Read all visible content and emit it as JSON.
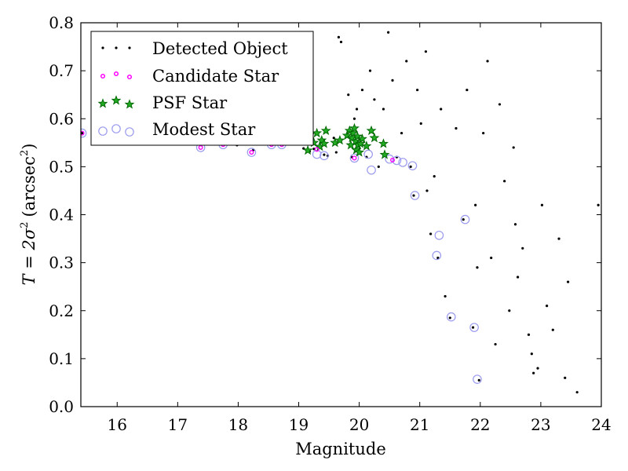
{
  "chart_data": {
    "type": "scatter",
    "title": "",
    "xlabel": "Magnitude",
    "ylabel_main": "T = 2σ",
    "ylabel_exp": "2",
    "ylabel_unit": "(arcsec",
    "ylabel_unit_exp": "2",
    "ylabel_unit_close": ")",
    "xlim": [
      15.4,
      24.0
    ],
    "ylim": [
      0.0,
      0.8
    ],
    "x_ticks": [
      16,
      17,
      18,
      19,
      20,
      21,
      22,
      23,
      24
    ],
    "y_ticks": [
      0.0,
      0.1,
      0.2,
      0.3,
      0.4,
      0.5,
      0.6,
      0.7,
      0.8
    ],
    "y_tick_labels": [
      "0.0",
      "0.1",
      "0.2",
      "0.3",
      "0.4",
      "0.5",
      "0.6",
      "0.7",
      "0.8"
    ],
    "grid": false,
    "legend_position": "top-left",
    "colors": {
      "detected": "#000000",
      "candidate": "#ff00ff",
      "psf_fill": "#22aa22",
      "psf_edge": "#006400",
      "modest": "#9a9aee"
    },
    "series": [
      {
        "name": "Detected Object",
        "marker": "dot",
        "x": [
          15.42,
          16.05,
          16.48,
          16.72,
          17.3,
          17.65,
          17.98,
          18.25,
          18.55,
          18.72,
          19.08,
          19.18,
          19.25,
          19.32,
          19.42,
          19.48,
          19.58,
          19.62,
          19.66,
          19.7,
          19.82,
          19.88,
          19.92,
          19.96,
          19.99,
          20.05,
          20.12,
          20.18,
          20.25,
          20.32,
          20.4,
          20.48,
          20.55,
          20.62,
          20.7,
          20.78,
          20.85,
          20.9,
          20.96,
          21.02,
          21.1,
          21.18,
          21.24,
          21.3,
          21.35,
          21.5,
          21.6,
          21.72,
          21.78,
          21.88,
          21.92,
          21.98,
          22.05,
          22.12,
          22.18,
          22.25,
          22.32,
          22.4,
          22.48,
          22.55,
          22.62,
          22.7,
          22.8,
          22.88,
          22.95,
          23.02,
          23.1,
          23.2,
          23.3,
          23.4,
          23.6,
          23.95,
          21.12,
          21.42,
          21.95,
          22.58,
          22.85,
          23.45
        ],
        "y": [
          0.57,
          0.56,
          0.558,
          0.556,
          0.548,
          0.549,
          0.545,
          0.535,
          0.547,
          0.553,
          0.538,
          0.532,
          0.537,
          0.541,
          0.525,
          0.523,
          0.56,
          0.53,
          0.77,
          0.76,
          0.65,
          0.52,
          0.6,
          0.62,
          0.55,
          0.66,
          0.52,
          0.7,
          0.64,
          0.5,
          0.62,
          0.78,
          0.68,
          0.52,
          0.57,
          0.72,
          0.5,
          0.44,
          0.66,
          0.59,
          0.74,
          0.36,
          0.48,
          0.31,
          0.62,
          0.185,
          0.58,
          0.39,
          0.66,
          0.165,
          0.42,
          0.055,
          0.57,
          0.72,
          0.31,
          0.13,
          0.63,
          0.47,
          0.2,
          0.54,
          0.27,
          0.33,
          0.15,
          0.07,
          0.08,
          0.42,
          0.21,
          0.16,
          0.35,
          0.06,
          0.03,
          0.42,
          0.45,
          0.23,
          0.29,
          0.38,
          0.11,
          0.26
        ]
      },
      {
        "name": "Candidate Star",
        "marker": "small-circle",
        "x": [
          15.42,
          16.05,
          16.48,
          17.38,
          17.75,
          18.22,
          18.55,
          18.72,
          19.3,
          19.92,
          20.55
        ],
        "y": [
          0.57,
          0.561,
          0.557,
          0.54,
          0.546,
          0.53,
          0.546,
          0.546,
          0.536,
          0.518,
          0.514
        ]
      },
      {
        "name": "PSF Star",
        "marker": "star",
        "x": [
          19.15,
          19.2,
          19.25,
          19.3,
          19.35,
          19.38,
          19.42,
          19.45,
          19.6,
          19.68,
          19.8,
          19.84,
          19.86,
          19.88,
          19.9,
          19.92,
          19.94,
          19.95,
          19.97,
          19.98,
          20.0,
          20.02,
          20.05,
          20.12,
          20.2,
          20.25,
          20.4,
          20.42
        ],
        "y": [
          0.534,
          0.568,
          0.55,
          0.57,
          0.542,
          0.555,
          0.548,
          0.575,
          0.55,
          0.555,
          0.565,
          0.575,
          0.545,
          0.56,
          0.57,
          0.58,
          0.553,
          0.535,
          0.563,
          0.545,
          0.53,
          0.548,
          0.558,
          0.543,
          0.575,
          0.56,
          0.548,
          0.525
        ]
      },
      {
        "name": "Modest Star",
        "marker": "open-circle",
        "x": [
          15.42,
          16.05,
          16.48,
          17.38,
          17.75,
          18.22,
          18.55,
          18.72,
          19.3,
          19.42,
          19.92,
          20.15,
          20.2,
          20.5,
          20.62,
          20.72,
          20.88,
          20.92,
          21.28,
          21.32,
          21.52,
          21.75,
          21.9,
          21.95
        ],
        "y": [
          0.57,
          0.561,
          0.557,
          0.54,
          0.546,
          0.53,
          0.546,
          0.546,
          0.526,
          0.523,
          0.518,
          0.526,
          0.493,
          0.516,
          0.513,
          0.509,
          0.502,
          0.44,
          0.315,
          0.357,
          0.187,
          0.39,
          0.165,
          0.057
        ]
      }
    ]
  }
}
